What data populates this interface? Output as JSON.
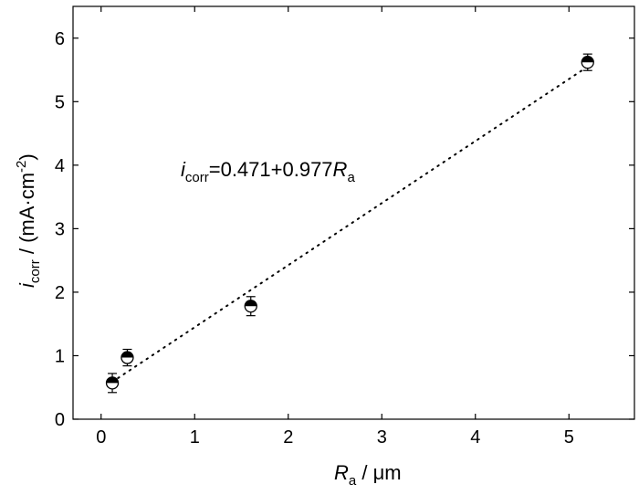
{
  "chart_data": {
    "type": "scatter",
    "title": "",
    "xlabel": {
      "symbol": "R",
      "subscript": "a",
      "unit": " / μm"
    },
    "ylabel": {
      "symbol": "i",
      "subscript": "corr",
      "unit_main": " / (mA·cm",
      "unit_sup": "-2",
      "unit_close": ")"
    },
    "xlim": [
      -0.3,
      5.7
    ],
    "ylim": [
      0,
      6.5
    ],
    "xticks": [
      0,
      1,
      2,
      3,
      4,
      5
    ],
    "yticks": [
      0,
      1,
      2,
      3,
      4,
      5,
      6
    ],
    "grid": false,
    "points": [
      {
        "x": 0.12,
        "y": 0.57,
        "err": 0.15
      },
      {
        "x": 0.28,
        "y": 0.97,
        "err": 0.13
      },
      {
        "x": 1.6,
        "y": 1.78,
        "err": 0.15
      },
      {
        "x": 5.2,
        "y": 5.62,
        "err": 0.13
      }
    ],
    "fit": {
      "intercept": 0.471,
      "slope": 0.977,
      "x_range": [
        0.12,
        5.2
      ],
      "style": "dotted"
    },
    "annotation": {
      "symbol": "i",
      "subscript": "corr",
      "text": "=0.471+0.977",
      "symbol2": "R",
      "subscript2": "a"
    },
    "marker": "half-filled circle"
  }
}
